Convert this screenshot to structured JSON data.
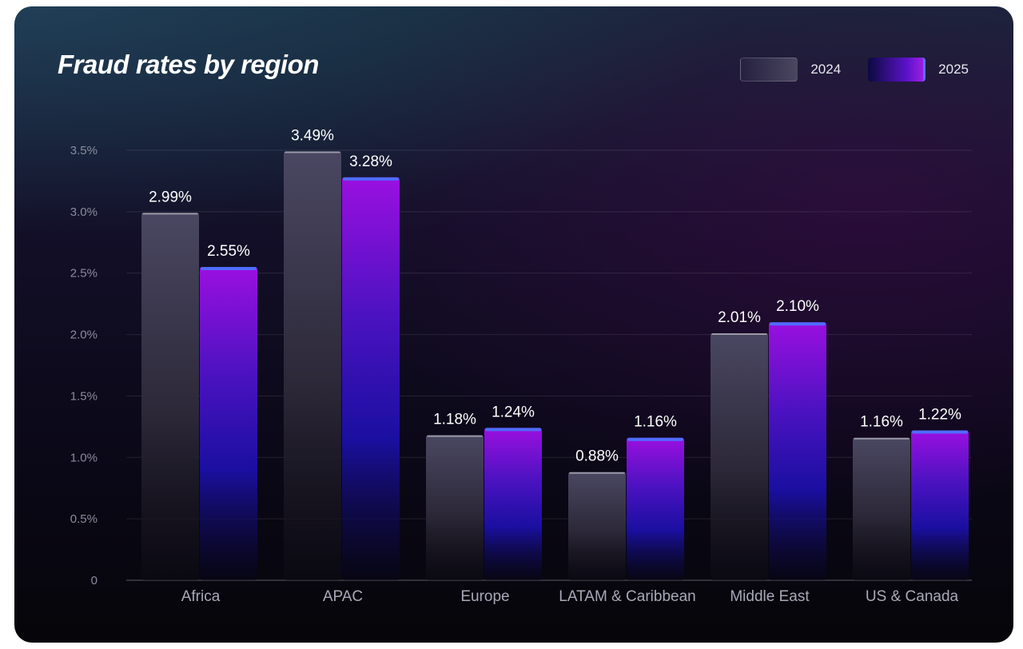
{
  "chart_data": {
    "type": "bar",
    "title": "Fraud rates by region",
    "categories": [
      "Africa",
      "APAC",
      "Europe",
      "LATAM & Caribbean",
      "Middle East",
      "US & Canada"
    ],
    "series": [
      {
        "name": "2024",
        "values": [
          2.99,
          3.49,
          1.18,
          0.88,
          2.01,
          1.16
        ],
        "labels": [
          "2.99%",
          "3.49%",
          "1.18%",
          "0.88%",
          "2.01%",
          "1.16%"
        ]
      },
      {
        "name": "2025",
        "values": [
          2.55,
          3.28,
          1.24,
          1.16,
          2.1,
          1.22
        ],
        "labels": [
          "2.55%",
          "3.28%",
          "1.24%",
          "1.16%",
          "2.10%",
          "1.22%"
        ]
      }
    ],
    "ylim": [
      0,
      3.5
    ],
    "yticks": [
      0,
      0.5,
      1.0,
      1.5,
      2.0,
      2.5,
      3.0,
      3.5
    ],
    "ytick_labels": [
      "0",
      "0.5%",
      "1.0%",
      "1.5%",
      "2.0%",
      "2.5%",
      "3.0%",
      "3.5%"
    ],
    "xlabel": "",
    "ylabel": "",
    "grid": true,
    "legend_position": "top-right"
  }
}
